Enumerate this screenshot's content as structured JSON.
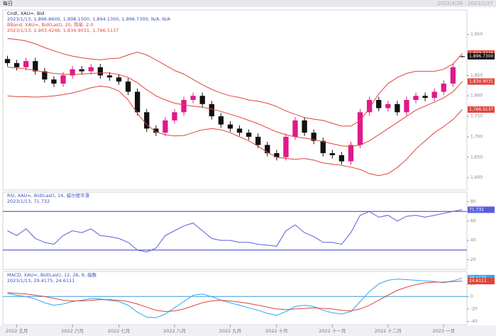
{
  "header": {
    "left": "每日",
    "right": "2022/4/28 - 2023/1/27"
  },
  "chart_data": [
    {
      "type": "candlestick",
      "legend": [
        {
          "text": "Cndl, XAU=, Bid",
          "color": "#222222"
        },
        {
          "text": "2023/1/13, 1,896.8600, 1,898.1500, 1,894.1300, 1,896.7300, N/A, N/A",
          "color": "#3a4fbf"
        },
        {
          "text": "BBand, XAU=, Bid(Last), 20, 简单, 2.0",
          "color": "#e0433a"
        },
        {
          "text": "2023/1/13, 1,903.4246, 1,834.9031, 1,766.5137",
          "color": "#e0433a"
        }
      ],
      "open": [
        1890,
        1880,
        1870,
        1885,
        1860,
        1840,
        1830,
        1850,
        1865,
        1860,
        1870,
        1850,
        1845,
        1835,
        1810,
        1760,
        1720,
        1710,
        1740,
        1760,
        1790,
        1800,
        1780,
        1750,
        1730,
        1720,
        1710,
        1700,
        1680,
        1660,
        1650,
        1700,
        1740,
        1710,
        1690,
        1660,
        1655,
        1640,
        1680,
        1760,
        1790,
        1770,
        1780,
        1760,
        1790,
        1800,
        1795,
        1810,
        1830,
        1896.86
      ],
      "high": [
        1898,
        1888,
        1893,
        1893,
        1868,
        1848,
        1858,
        1873,
        1873,
        1878,
        1878,
        1858,
        1853,
        1843,
        1818,
        1768,
        1728,
        1748,
        1768,
        1798,
        1808,
        1808,
        1788,
        1758,
        1738,
        1728,
        1718,
        1708,
        1688,
        1668,
        1708,
        1748,
        1748,
        1718,
        1698,
        1668,
        1663,
        1688,
        1768,
        1798,
        1798,
        1788,
        1788,
        1798,
        1808,
        1808,
        1818,
        1838,
        1878,
        1898.15
      ],
      "low": [
        1872,
        1862,
        1862,
        1852,
        1832,
        1822,
        1822,
        1842,
        1852,
        1852,
        1842,
        1837,
        1827,
        1802,
        1752,
        1712,
        1702,
        1702,
        1732,
        1752,
        1782,
        1772,
        1742,
        1722,
        1712,
        1702,
        1692,
        1672,
        1652,
        1642,
        1642,
        1692,
        1702,
        1682,
        1652,
        1647,
        1632,
        1632,
        1672,
        1752,
        1762,
        1762,
        1752,
        1752,
        1782,
        1787,
        1787,
        1802,
        1822,
        1894.13
      ],
      "close": [
        1880,
        1870,
        1885,
        1860,
        1840,
        1830,
        1850,
        1865,
        1860,
        1870,
        1850,
        1845,
        1835,
        1810,
        1760,
        1720,
        1710,
        1740,
        1760,
        1790,
        1800,
        1780,
        1750,
        1730,
        1720,
        1710,
        1700,
        1680,
        1660,
        1650,
        1700,
        1740,
        1710,
        1690,
        1660,
        1655,
        1640,
        1680,
        1760,
        1790,
        1770,
        1780,
        1760,
        1790,
        1800,
        1795,
        1810,
        1830,
        1870,
        1896.73
      ],
      "up_color": "#e0198c",
      "down_color": "#111111",
      "close_label": "1,896.7300",
      "series": [
        {
          "color": "#e0433a",
          "last_label": "1,903.4246",
          "values": [
            1940,
            1938,
            1934,
            1927,
            1918,
            1910,
            1903,
            1897,
            1893,
            1890,
            1888,
            1891,
            1892,
            1900,
            1907,
            1900,
            1888,
            1875,
            1862,
            1853,
            1840,
            1827,
            1816,
            1807,
            1800,
            1796,
            1790,
            1787,
            1782,
            1774,
            1763,
            1755,
            1747,
            1743,
            1740,
            1733,
            1726,
            1726,
            1740,
            1770,
            1805,
            1830,
            1845,
            1855,
            1860,
            1860,
            1860,
            1865,
            1878,
            1903.4246
          ]
        },
        {
          "color": "#e0433a",
          "last_label": "1,834.9031",
          "values": [
            1870,
            1868,
            1866,
            1862,
            1858,
            1855,
            1853,
            1852,
            1853,
            1855,
            1856,
            1856,
            1852,
            1845,
            1832,
            1815,
            1800,
            1790,
            1782,
            1778,
            1775,
            1772,
            1768,
            1762,
            1755,
            1748,
            1740,
            1732,
            1722,
            1712,
            1705,
            1700,
            1697,
            1693,
            1688,
            1683,
            1678,
            1676,
            1680,
            1690,
            1705,
            1720,
            1735,
            1750,
            1765,
            1775,
            1785,
            1795,
            1810,
            1834.9031
          ]
        },
        {
          "color": "#e0433a",
          "last_label": "1,766.5137",
          "values": [
            1800,
            1798,
            1798,
            1797,
            1798,
            1800,
            1803,
            1807,
            1813,
            1820,
            1824,
            1821,
            1812,
            1790,
            1757,
            1730,
            1712,
            1705,
            1702,
            1703,
            1710,
            1717,
            1720,
            1717,
            1710,
            1700,
            1690,
            1677,
            1662,
            1650,
            1647,
            1645,
            1647,
            1643,
            1636,
            1633,
            1630,
            1626,
            1620,
            1610,
            1605,
            1610,
            1625,
            1645,
            1670,
            1690,
            1710,
            1725,
            1742,
            1766.5137
          ]
        }
      ],
      "ylim": [
        1570,
        2010
      ],
      "yticks": [
        {
          "value": 1600,
          "label": "1,600"
        },
        {
          "value": 1650,
          "label": "1,650"
        },
        {
          "value": 1700,
          "label": "1,700"
        },
        {
          "value": 1750,
          "label": "1,750"
        },
        {
          "value": 1800,
          "label": "1,800"
        },
        {
          "value": 1850,
          "label": "1,850"
        },
        {
          "value": 1900,
          "label": "1,900"
        },
        {
          "value": 1950,
          "label": "1,950"
        }
      ]
    },
    {
      "type": "line",
      "legend": [
        {
          "text": "RSI, XAU=, Bid(Last), 14, 威尔德平滑",
          "color": "#3a4fbf"
        },
        {
          "text": "2023/1/13, 71.732",
          "color": "#3a4fbf"
        }
      ],
      "series": [
        {
          "color": "#5a5ee0",
          "last_label": "71.732",
          "values": [
            50,
            45,
            52,
            42,
            38,
            36,
            45,
            50,
            48,
            52,
            45,
            44,
            42,
            38,
            30,
            28,
            32,
            45,
            50,
            55,
            58,
            50,
            42,
            40,
            40,
            38,
            38,
            36,
            35,
            34,
            50,
            56,
            48,
            44,
            38,
            38,
            36,
            48,
            66,
            70,
            64,
            66,
            60,
            65,
            66,
            64,
            66,
            68,
            70,
            71.732
          ]
        }
      ],
      "levels": [
        {
          "value": 70,
          "color": "#3a3ad0"
        },
        {
          "value": 30,
          "color": "#3a3ad0"
        }
      ],
      "ylim": [
        10,
        90
      ],
      "yticks": [
        20,
        40,
        60,
        80
      ]
    },
    {
      "type": "line",
      "legend": [
        {
          "text": "MACD, XAU=, Bid(Last), 12, 26, 9, 指数",
          "color": "#3a4fbf"
        },
        {
          "text": "2023/1/13, 29.4175, 24.6111",
          "color": "#3a4fbf"
        }
      ],
      "series": [
        {
          "color": "#2aa8f0",
          "last_label": "29.4175",
          "values": [
            5,
            2,
            0,
            -4,
            -10,
            -14,
            -12,
            -8,
            -6,
            -3,
            -4,
            -6,
            -8,
            -14,
            -25,
            -33,
            -34,
            -28,
            -18,
            -8,
            2,
            4,
            0,
            -6,
            -10,
            -14,
            -18,
            -22,
            -27,
            -30,
            -24,
            -16,
            -14,
            -16,
            -22,
            -26,
            -28,
            -24,
            -8,
            8,
            20,
            26,
            28,
            27,
            26,
            25,
            24,
            22,
            25,
            29.4175
          ]
        },
        {
          "color": "#e0433a",
          "last_label": "24.6111",
          "values": [
            6,
            5,
            4,
            2,
            0,
            -3,
            -6,
            -7,
            -7,
            -6,
            -5,
            -5,
            -6,
            -8,
            -12,
            -17,
            -22,
            -24,
            -23,
            -20,
            -15,
            -10,
            -7,
            -6,
            -7,
            -9,
            -11,
            -14,
            -17,
            -20,
            -21,
            -20,
            -19,
            -18,
            -19,
            -20,
            -22,
            -23,
            -20,
            -14,
            -6,
            2,
            10,
            15,
            19,
            22,
            23,
            23,
            24,
            24.6111
          ]
        }
      ],
      "levels": [
        {
          "value": 0,
          "color": "#3a9ae0"
        }
      ],
      "ylim": [
        -45,
        40
      ],
      "yticks": [
        -40,
        -20,
        0,
        20
      ],
      "categories": [
        null,
        "2022 五月",
        null,
        null,
        null,
        null,
        null,
        "2022 六月",
        null,
        null,
        null,
        null,
        "2022 七月",
        null,
        null,
        null,
        null,
        null,
        "2022 八月",
        null,
        null,
        null,
        null,
        null,
        "2022 九月",
        null,
        null,
        null,
        null,
        "2022 十月",
        null,
        null,
        null,
        null,
        null,
        "2022 十一月",
        null,
        null,
        null,
        null,
        null,
        "2022 十二月",
        null,
        null,
        null,
        null,
        null,
        "2023 一月",
        null,
        null
      ]
    }
  ]
}
